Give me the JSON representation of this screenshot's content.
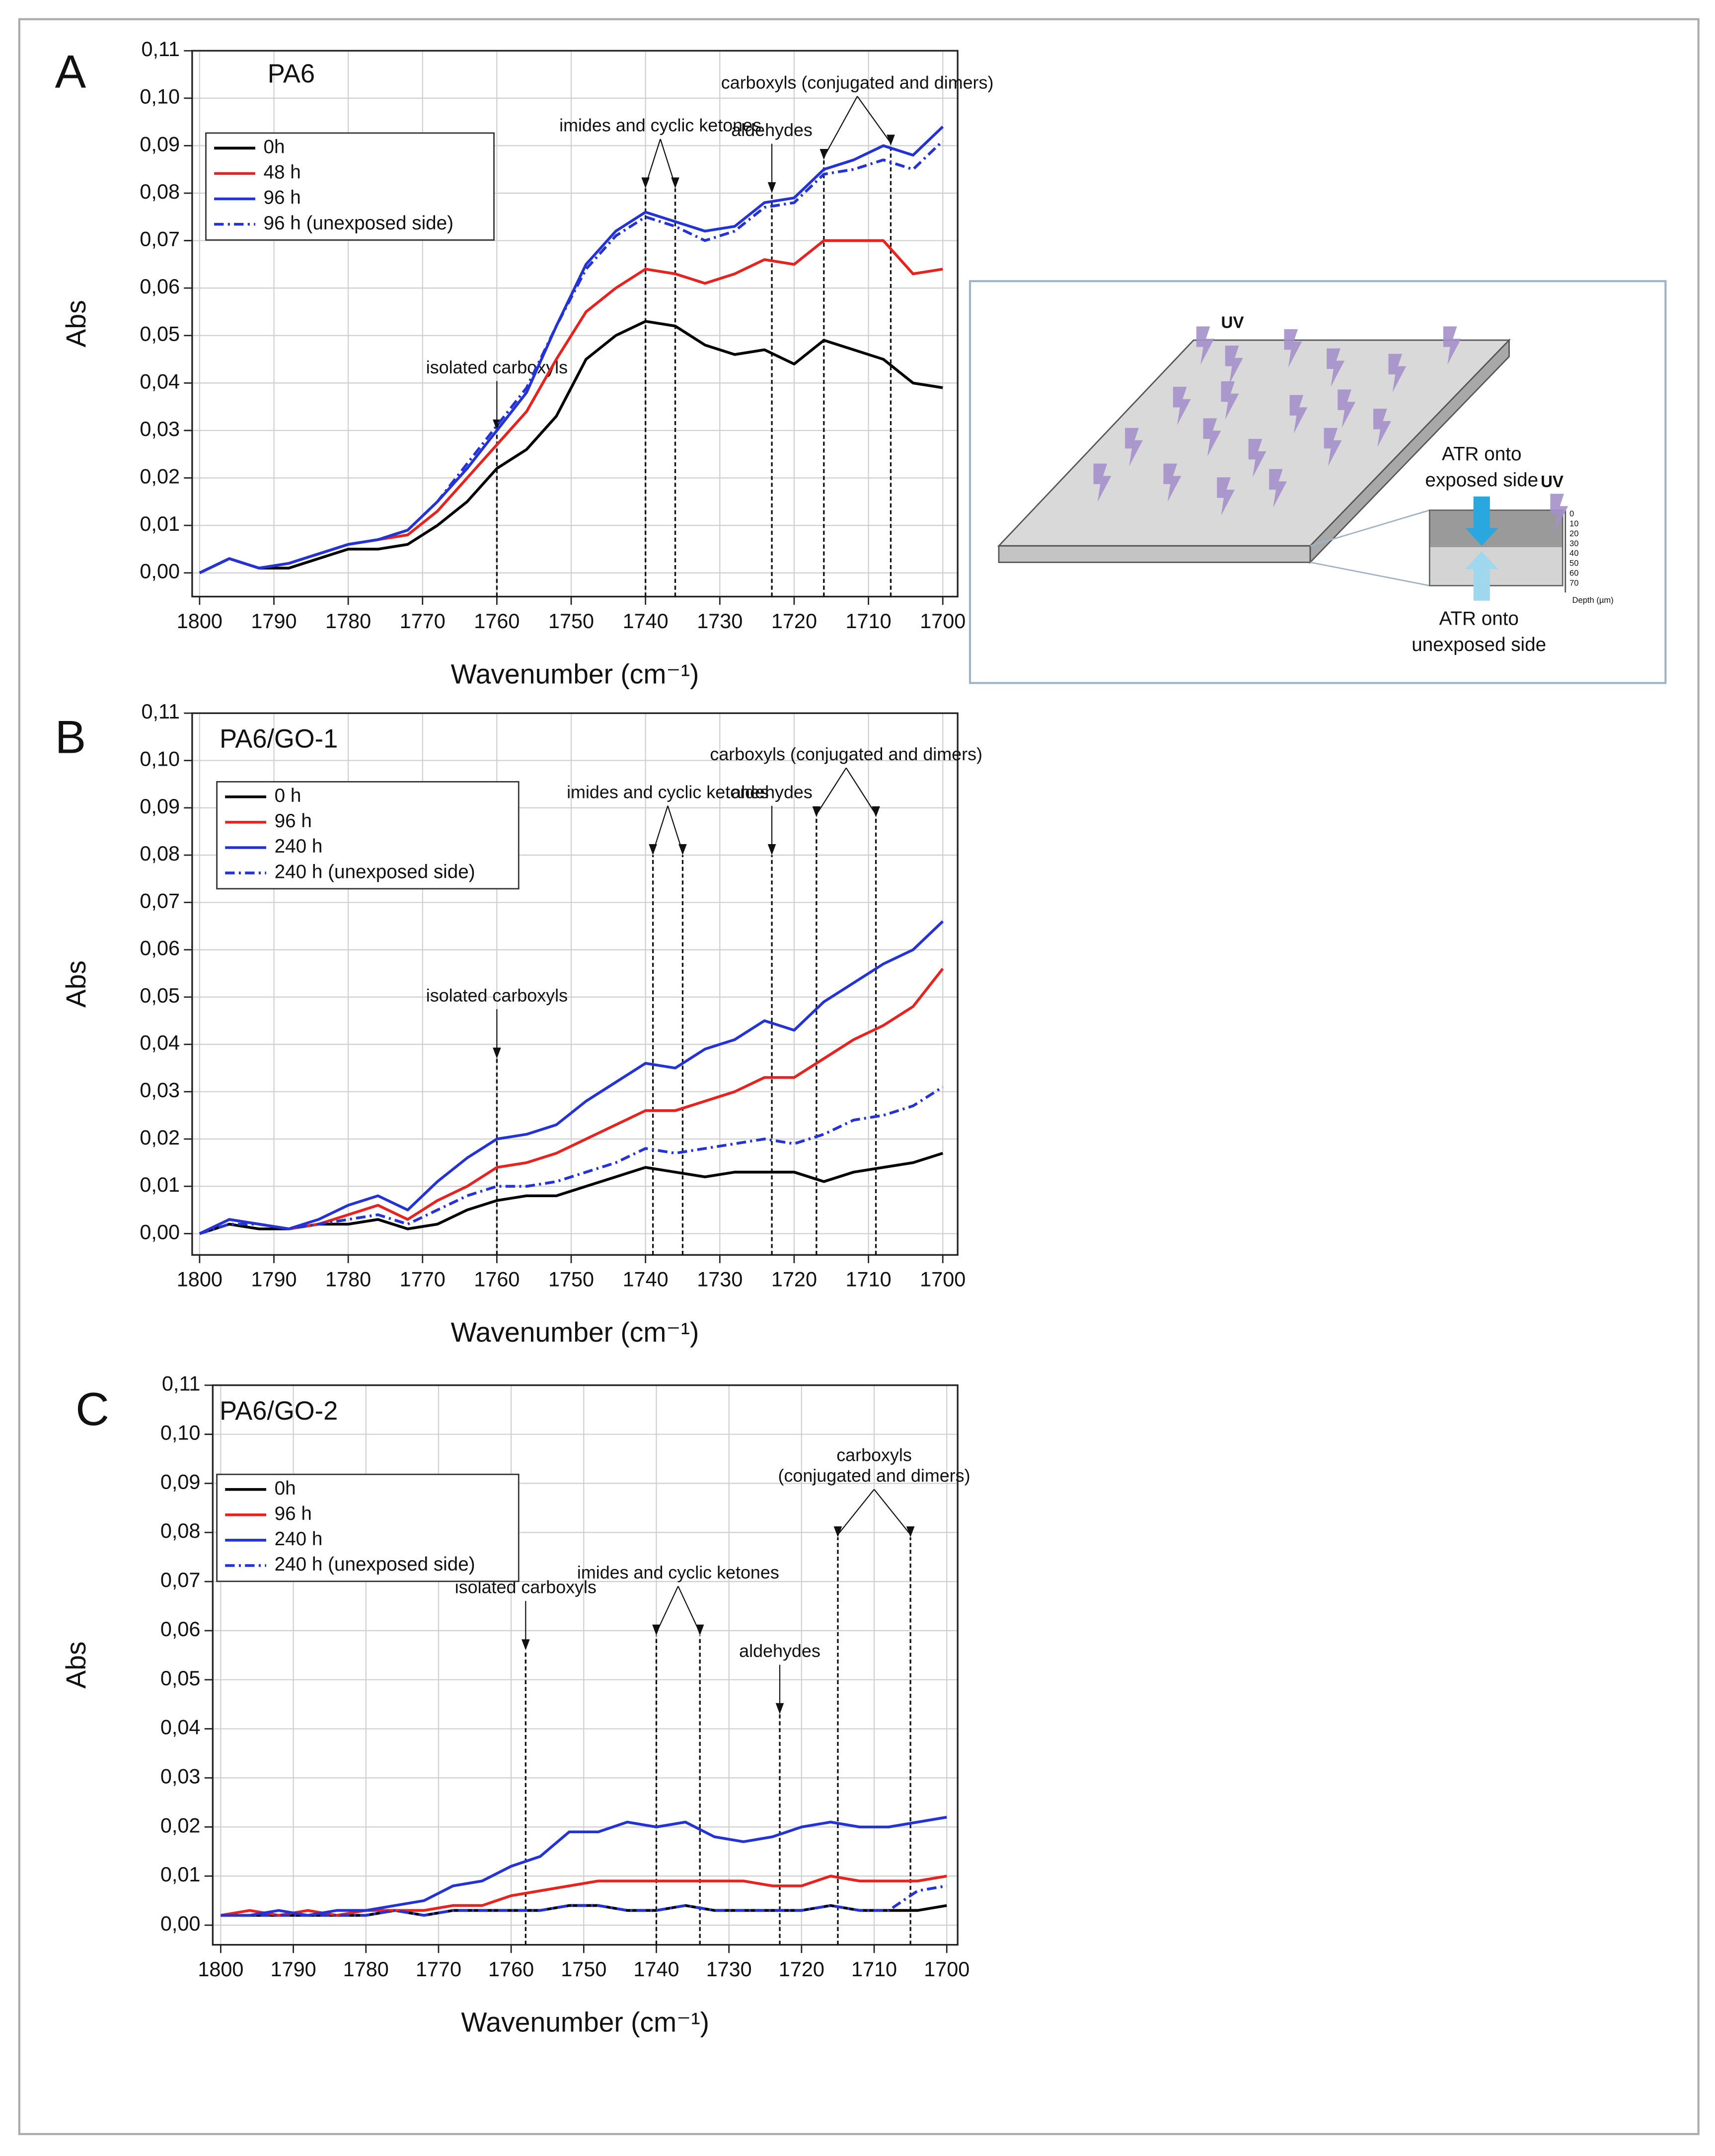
{
  "chart_data": [
    {
      "type": "line",
      "panel": "A",
      "title": "PA6",
      "xlabel": "Wavenumber (cm⁻¹)",
      "ylabel": "Abs",
      "x": [
        1800,
        1796,
        1792,
        1788,
        1784,
        1780,
        1776,
        1772,
        1768,
        1764,
        1760,
        1756,
        1752,
        1748,
        1744,
        1740,
        1736,
        1732,
        1728,
        1724,
        1720,
        1716,
        1712,
        1708,
        1704,
        1700
      ],
      "series": [
        {
          "name": "0h",
          "color": "#000000",
          "style": "solid",
          "values": [
            0.0,
            0.003,
            0.001,
            0.001,
            0.003,
            0.005,
            0.005,
            0.006,
            0.01,
            0.015,
            0.022,
            0.026,
            0.033,
            0.045,
            0.05,
            0.053,
            0.052,
            0.048,
            0.046,
            0.047,
            0.044,
            0.049,
            0.047,
            0.045,
            0.04,
            0.039
          ]
        },
        {
          "name": "48 h",
          "color": "#e8231f",
          "style": "solid",
          "values": [
            0.0,
            0.003,
            0.001,
            0.002,
            0.004,
            0.006,
            0.007,
            0.008,
            0.013,
            0.02,
            0.027,
            0.034,
            0.045,
            0.055,
            0.06,
            0.064,
            0.063,
            0.061,
            0.063,
            0.066,
            0.065,
            0.07,
            0.07,
            0.07,
            0.063,
            0.064
          ]
        },
        {
          "name": "96 h",
          "color": "#2433d6",
          "style": "solid",
          "values": [
            0.0,
            0.003,
            0.001,
            0.002,
            0.004,
            0.006,
            0.007,
            0.009,
            0.015,
            0.022,
            0.03,
            0.038,
            0.052,
            0.065,
            0.072,
            0.076,
            0.074,
            0.072,
            0.073,
            0.078,
            0.079,
            0.085,
            0.087,
            0.09,
            0.088,
            0.094
          ]
        },
        {
          "name": "96 h (unexposed side)",
          "color": "#2433d6",
          "style": "dashdot",
          "values": [
            0.0,
            0.003,
            0.001,
            0.002,
            0.004,
            0.006,
            0.007,
            0.009,
            0.015,
            0.023,
            0.031,
            0.039,
            0.052,
            0.064,
            0.071,
            0.075,
            0.073,
            0.07,
            0.072,
            0.077,
            0.078,
            0.084,
            0.085,
            0.087,
            0.085,
            0.091
          ]
        }
      ],
      "xlim": [
        1801,
        1698
      ],
      "xticks": [
        1800,
        1790,
        1780,
        1770,
        1760,
        1750,
        1740,
        1730,
        1720,
        1710,
        1700
      ],
      "ylim": [
        -0.005,
        0.11
      ],
      "yticks": [
        {
          "value": 0,
          "label": "0,00"
        },
        {
          "value": 0.01,
          "label": "0,01"
        },
        {
          "value": 0.02,
          "label": "0,02"
        },
        {
          "value": 0.03,
          "label": "0,03"
        },
        {
          "value": 0.04,
          "label": "0,04"
        },
        {
          "value": 0.05,
          "label": "0,05"
        },
        {
          "value": 0.06,
          "label": "0,06"
        },
        {
          "value": 0.07,
          "label": "0,07"
        },
        {
          "value": 0.08,
          "label": "0,08"
        },
        {
          "value": 0.09,
          "label": "0,09"
        },
        {
          "value": 0.1,
          "label": "0,10"
        },
        {
          "value": 0.11,
          "label": "0,11"
        }
      ],
      "grid": true,
      "legend": "upper left",
      "annotations": [
        {
          "text": "isolated carboxyls",
          "markers": [
            {
              "x": 1760,
              "y": 0.03
            }
          ]
        },
        {
          "text": "imides and cyclic ketones",
          "markers": [
            {
              "x": 1740,
              "y": 0.081
            },
            {
              "x": 1736,
              "y": 0.081
            }
          ]
        },
        {
          "text": "aldehydes",
          "markers": [
            {
              "x": 1723,
              "y": 0.08
            }
          ]
        },
        {
          "text": "carboxyls (conjugated and dimers)",
          "markers": [
            {
              "x": 1716,
              "y": 0.087
            },
            {
              "x": 1707,
              "y": 0.09
            }
          ]
        }
      ]
    },
    {
      "type": "line",
      "panel": "B",
      "title": "PA6/GO-1",
      "xlabel": "Wavenumber (cm⁻¹)",
      "ylabel": "Abs",
      "x": [
        1800,
        1796,
        1792,
        1788,
        1784,
        1780,
        1776,
        1772,
        1768,
        1764,
        1760,
        1756,
        1752,
        1748,
        1744,
        1740,
        1736,
        1732,
        1728,
        1724,
        1720,
        1716,
        1712,
        1708,
        1704,
        1700
      ],
      "series": [
        {
          "name": "0 h",
          "color": "#000000",
          "style": "solid",
          "values": [
            0.0,
            0.002,
            0.001,
            0.001,
            0.002,
            0.002,
            0.003,
            0.001,
            0.002,
            0.005,
            0.007,
            0.008,
            0.008,
            0.01,
            0.012,
            0.014,
            0.013,
            0.012,
            0.013,
            0.013,
            0.013,
            0.011,
            0.013,
            0.014,
            0.015,
            0.017
          ]
        },
        {
          "name": "96 h",
          "color": "#e8231f",
          "style": "solid",
          "values": [
            0.0,
            0.003,
            0.002,
            0.001,
            0.002,
            0.004,
            0.006,
            0.003,
            0.007,
            0.01,
            0.014,
            0.015,
            0.017,
            0.02,
            0.023,
            0.026,
            0.026,
            0.028,
            0.03,
            0.033,
            0.033,
            0.037,
            0.041,
            0.044,
            0.048,
            0.056
          ]
        },
        {
          "name": "240 h",
          "color": "#2433d6",
          "style": "solid",
          "values": [
            0.0,
            0.003,
            0.002,
            0.001,
            0.003,
            0.006,
            0.008,
            0.005,
            0.011,
            0.016,
            0.02,
            0.021,
            0.023,
            0.028,
            0.032,
            0.036,
            0.035,
            0.039,
            0.041,
            0.045,
            0.043,
            0.049,
            0.053,
            0.057,
            0.06,
            0.066
          ]
        },
        {
          "name": "240 h (unexposed side)",
          "color": "#2433d6",
          "style": "dashdot",
          "values": [
            0.0,
            0.002,
            0.002,
            0.001,
            0.002,
            0.003,
            0.004,
            0.002,
            0.005,
            0.008,
            0.01,
            0.01,
            0.011,
            0.013,
            0.015,
            0.018,
            0.017,
            0.018,
            0.019,
            0.02,
            0.019,
            0.021,
            0.024,
            0.025,
            0.027,
            0.031
          ]
        }
      ],
      "xlim": [
        1801,
        1698
      ],
      "xticks": [
        1800,
        1790,
        1780,
        1770,
        1760,
        1750,
        1740,
        1730,
        1720,
        1710,
        1700
      ],
      "ylim": [
        -0.0045,
        0.11
      ],
      "yticks": [
        {
          "value": 0,
          "label": "0,00"
        },
        {
          "value": 0.01,
          "label": "0,01"
        },
        {
          "value": 0.02,
          "label": "0,02"
        },
        {
          "value": 0.03,
          "label": "0,03"
        },
        {
          "value": 0.04,
          "label": "0,04"
        },
        {
          "value": 0.05,
          "label": "0,05"
        },
        {
          "value": 0.06,
          "label": "0,06"
        },
        {
          "value": 0.07,
          "label": "0,07"
        },
        {
          "value": 0.08,
          "label": "0,08"
        },
        {
          "value": 0.09,
          "label": "0,09"
        },
        {
          "value": 0.1,
          "label": "0,10"
        },
        {
          "value": 0.11,
          "label": "0,11"
        }
      ],
      "grid": true,
      "legend": "upper left",
      "annotations": [
        {
          "text": "isolated carboxyls",
          "markers": [
            {
              "x": 1760,
              "y": 0.037
            }
          ]
        },
        {
          "text": "imides and cyclic ketones",
          "markers": [
            {
              "x": 1739,
              "y": 0.08
            },
            {
              "x": 1735,
              "y": 0.08
            }
          ]
        },
        {
          "text": "aldehydes",
          "markers": [
            {
              "x": 1723,
              "y": 0.08
            }
          ]
        },
        {
          "text": "carboxyls (conjugated and dimers)",
          "markers": [
            {
              "x": 1717,
              "y": 0.088
            },
            {
              "x": 1709,
              "y": 0.088
            }
          ]
        }
      ]
    },
    {
      "type": "line",
      "panel": "C",
      "title": "PA6/GO-2",
      "xlabel": "Wavenumber (cm⁻¹)",
      "ylabel": "Abs",
      "x": [
        1800,
        1796,
        1792,
        1788,
        1784,
        1780,
        1776,
        1772,
        1768,
        1764,
        1760,
        1756,
        1752,
        1748,
        1744,
        1740,
        1736,
        1732,
        1728,
        1724,
        1720,
        1716,
        1712,
        1708,
        1704,
        1700
      ],
      "series": [
        {
          "name": "0h",
          "color": "#000000",
          "style": "solid",
          "values": [
            0.002,
            0.002,
            0.002,
            0.002,
            0.002,
            0.002,
            0.003,
            0.002,
            0.003,
            0.003,
            0.003,
            0.003,
            0.004,
            0.004,
            0.003,
            0.003,
            0.004,
            0.003,
            0.003,
            0.003,
            0.003,
            0.004,
            0.003,
            0.003,
            0.003,
            0.004
          ]
        },
        {
          "name": "96 h",
          "color": "#e8231f",
          "style": "solid",
          "values": [
            0.002,
            0.003,
            0.002,
            0.003,
            0.002,
            0.003,
            0.003,
            0.003,
            0.004,
            0.004,
            0.006,
            0.007,
            0.008,
            0.009,
            0.009,
            0.009,
            0.009,
            0.009,
            0.009,
            0.008,
            0.008,
            0.01,
            0.009,
            0.009,
            0.009,
            0.01
          ]
        },
        {
          "name": "240 h",
          "color": "#2433d6",
          "style": "solid",
          "values": [
            0.002,
            0.002,
            0.003,
            0.002,
            0.003,
            0.003,
            0.004,
            0.005,
            0.008,
            0.009,
            0.012,
            0.014,
            0.019,
            0.019,
            0.021,
            0.02,
            0.021,
            0.018,
            0.017,
            0.018,
            0.02,
            0.021,
            0.02,
            0.02,
            0.021,
            0.022
          ]
        },
        {
          "name": "240 h (unexposed side)",
          "color": "#2433d6",
          "style": "dashdot",
          "values": [
            0.002,
            0.002,
            0.002,
            0.002,
            0.002,
            0.002,
            0.003,
            0.002,
            0.003,
            0.003,
            0.003,
            0.003,
            0.004,
            0.004,
            0.003,
            0.003,
            0.004,
            0.003,
            0.003,
            0.003,
            0.003,
            0.004,
            0.003,
            0.003,
            0.007,
            0.008
          ]
        }
      ],
      "xlim": [
        1801.1,
        1698.5
      ],
      "xticks": [
        1800,
        1790,
        1780,
        1770,
        1760,
        1750,
        1740,
        1730,
        1720,
        1710,
        1700
      ],
      "ylim": [
        -0.004,
        0.11
      ],
      "yticks": [
        {
          "value": 0,
          "label": "0,00"
        },
        {
          "value": 0.01,
          "label": "0,01"
        },
        {
          "value": 0.02,
          "label": "0,02"
        },
        {
          "value": 0.03,
          "label": "0,03"
        },
        {
          "value": 0.04,
          "label": "0,04"
        },
        {
          "value": 0.05,
          "label": "0,05"
        },
        {
          "value": 0.06,
          "label": "0,06"
        },
        {
          "value": 0.07,
          "label": "0,07"
        },
        {
          "value": 0.08,
          "label": "0,08"
        },
        {
          "value": 0.09,
          "label": "0,09"
        },
        {
          "value": 0.1,
          "label": "0,10"
        },
        {
          "value": 0.11,
          "label": "0,11"
        }
      ],
      "grid": true,
      "legend": "upper left",
      "annotations": [
        {
          "text": "isolated carboxyls",
          "markers": [
            {
              "x": 1758,
              "y": 0.056
            }
          ]
        },
        {
          "text": "imides and cyclic ketones",
          "markers": [
            {
              "x": 1740,
              "y": 0.059
            },
            {
              "x": 1734,
              "y": 0.059
            }
          ]
        },
        {
          "text": "aldehydes",
          "markers": [
            {
              "x": 1723,
              "y": 0.043
            }
          ]
        },
        {
          "text": [
            "carboxyls",
            "(conjugated and dimers)"
          ],
          "markers": [
            {
              "x": 1715,
              "y": 0.079
            },
            {
              "x": 1705,
              "y": 0.079
            }
          ]
        }
      ]
    }
  ],
  "diagram": {
    "uv_top": "UV",
    "uv_side": "UV",
    "exposed": [
      "ATR onto",
      "exposed side"
    ],
    "unexposed": [
      "ATR onto",
      "unexposed side"
    ],
    "depth_ticks": [
      "0",
      "10",
      "20",
      "30",
      "40",
      "50",
      "60",
      "70"
    ],
    "depth_label": "Depth (µm)"
  }
}
